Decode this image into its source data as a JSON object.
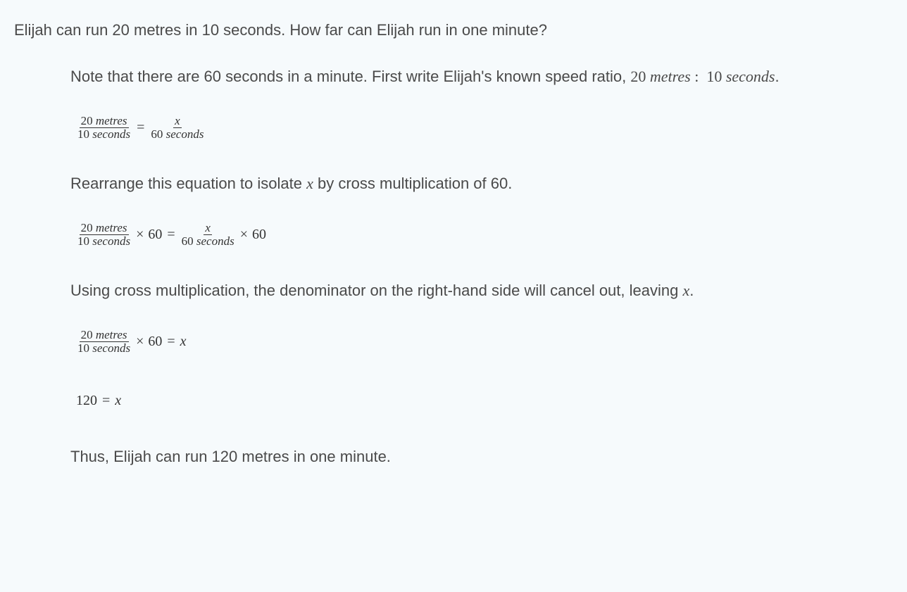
{
  "question": "Elijah can run 20 metres in 10 seconds. How far can Elijah run in one minute?",
  "solution": {
    "p1_a": "Note that there are 60 seconds in a minute. First write Elijah's known speed ratio, ",
    "p1_ratio_lhs_num": "20",
    "p1_ratio_lhs_unit": "metres",
    "p1_ratio_colon": " : ",
    "p1_ratio_rhs_num": "10",
    "p1_ratio_rhs_unit": "seconds",
    "p1_b": ".",
    "eq1": {
      "lfrac_num_val": "20",
      "lfrac_num_unit": "metres",
      "lfrac_den_val": "10",
      "lfrac_den_unit": "seconds",
      "eq": "=",
      "rfrac_num_var": "x",
      "rfrac_den_val": "60",
      "rfrac_den_unit": "seconds"
    },
    "p2_a": "Rearrange this equation to isolate ",
    "p2_var": "x",
    "p2_b": " by cross multiplication of 60.",
    "eq2": {
      "lfrac_num_val": "20",
      "lfrac_num_unit": "metres",
      "lfrac_den_val": "10",
      "lfrac_den_unit": "seconds",
      "times": "×",
      "mult": "60",
      "eq": "=",
      "rfrac_num_var": "x",
      "rfrac_den_val": "60",
      "rfrac_den_unit": "seconds"
    },
    "p3_a": "Using cross multiplication, the denominator on the right-hand side will cancel out, leaving ",
    "p3_var": "x",
    "p3_b": ".",
    "eq3": {
      "lfrac_num_val": "20",
      "lfrac_num_unit": "metres",
      "lfrac_den_val": "10",
      "lfrac_den_unit": "seconds",
      "times": "×",
      "mult": "60",
      "eq": "=",
      "rhs_var": "x"
    },
    "eq4": {
      "lhs": "120",
      "eq": "=",
      "rhs_var": "x"
    },
    "p4": "Thus, Elijah can run 120 metres in one minute."
  }
}
